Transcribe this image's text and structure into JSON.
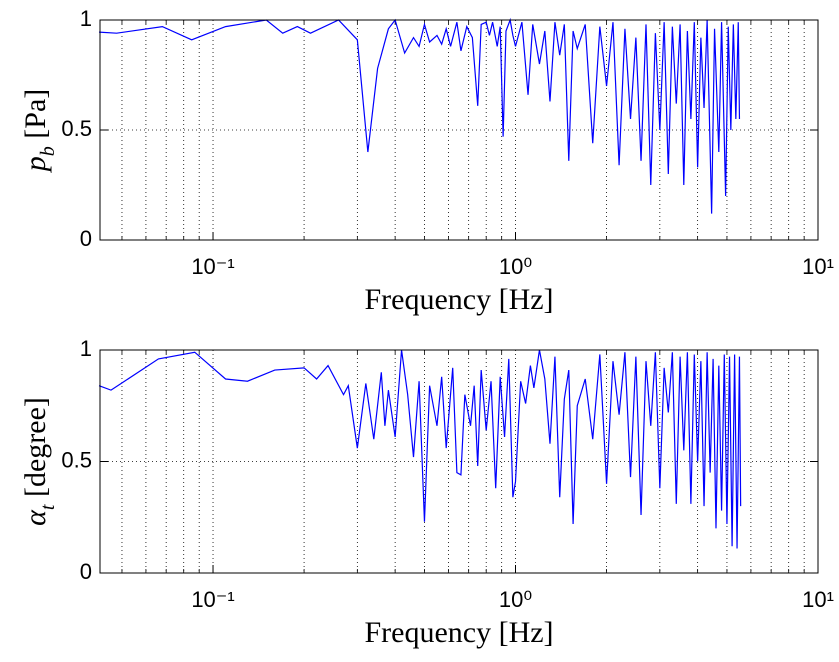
{
  "chart_data": [
    {
      "type": "line",
      "xlabel": "Frequency [Hz]",
      "ylabel": "pb [Pa]",
      "xscale": "log",
      "grid": true,
      "color": "#0000ff",
      "xlim": [
        0.0423,
        10
      ],
      "ylim": [
        0,
        1
      ],
      "xticks": [
        {
          "value": 0.1,
          "label": "10⁻¹"
        },
        {
          "value": 1,
          "label": "10⁰"
        },
        {
          "value": 10,
          "label": "10¹"
        }
      ],
      "yticks": [
        0,
        0.5,
        1
      ],
      "x": [
        0.042,
        0.048,
        0.068,
        0.085,
        0.11,
        0.15,
        0.17,
        0.19,
        0.21,
        0.26,
        0.3,
        0.325,
        0.35,
        0.38,
        0.4,
        0.43,
        0.46,
        0.48,
        0.5,
        0.52,
        0.55,
        0.57,
        0.59,
        0.61,
        0.64,
        0.66,
        0.69,
        0.72,
        0.75,
        0.77,
        0.8,
        0.82,
        0.84,
        0.87,
        0.89,
        0.91,
        0.93,
        0.96,
        0.98,
        1.0,
        1.05,
        1.1,
        1.14,
        1.2,
        1.25,
        1.3,
        1.35,
        1.4,
        1.45,
        1.5,
        1.55,
        1.6,
        1.7,
        1.8,
        1.9,
        2.0,
        2.1,
        2.2,
        2.3,
        2.4,
        2.5,
        2.6,
        2.7,
        2.8,
        2.9,
        3.0,
        3.1,
        3.2,
        3.3,
        3.4,
        3.5,
        3.6,
        3.7,
        3.8,
        3.9,
        4.0,
        4.1,
        4.2,
        4.3,
        4.45,
        4.55,
        4.7,
        4.8,
        4.95,
        5.05,
        5.15,
        5.25,
        5.35,
        5.45,
        5.5
      ],
      "values": [
        0.945,
        0.94,
        0.97,
        0.91,
        0.97,
        1.0,
        0.94,
        0.97,
        0.94,
        1.0,
        0.91,
        0.4,
        0.78,
        0.96,
        1.0,
        0.85,
        0.92,
        0.88,
        0.98,
        0.9,
        0.93,
        0.89,
        0.96,
        0.88,
        0.99,
        0.86,
        0.97,
        0.92,
        0.61,
        0.98,
        0.99,
        0.93,
        0.99,
        0.88,
        0.97,
        0.47,
        0.95,
        1.0,
        0.93,
        0.88,
        0.99,
        0.66,
        0.98,
        0.8,
        0.95,
        0.63,
        0.99,
        0.84,
        0.98,
        0.36,
        0.95,
        0.87,
        0.98,
        0.44,
        0.97,
        0.7,
        0.99,
        0.34,
        0.96,
        0.55,
        0.92,
        0.36,
        0.98,
        0.25,
        0.94,
        0.5,
        0.99,
        0.3,
        0.97,
        0.62,
        0.98,
        0.25,
        0.95,
        0.55,
        0.99,
        0.33,
        0.92,
        0.6,
        1.0,
        0.12,
        0.96,
        0.4,
        0.99,
        0.2,
        0.97,
        0.5,
        0.98,
        0.55,
        0.99,
        0.55
      ]
    },
    {
      "type": "line",
      "xlabel": "Frequency [Hz]",
      "ylabel": "αt [degree]",
      "xscale": "log",
      "grid": true,
      "color": "#0000ff",
      "xlim": [
        0.0423,
        10
      ],
      "ylim": [
        0,
        1
      ],
      "xticks": [
        {
          "value": 0.1,
          "label": "10⁻¹"
        },
        {
          "value": 1,
          "label": "10⁰"
        },
        {
          "value": 10,
          "label": "10¹"
        }
      ],
      "yticks": [
        0,
        0.5,
        1
      ],
      "x": [
        0.042,
        0.046,
        0.066,
        0.087,
        0.11,
        0.13,
        0.16,
        0.2,
        0.22,
        0.24,
        0.27,
        0.28,
        0.3,
        0.32,
        0.34,
        0.36,
        0.37,
        0.38,
        0.4,
        0.42,
        0.44,
        0.46,
        0.48,
        0.5,
        0.52,
        0.55,
        0.57,
        0.59,
        0.62,
        0.64,
        0.66,
        0.68,
        0.71,
        0.73,
        0.75,
        0.77,
        0.8,
        0.83,
        0.86,
        0.89,
        0.92,
        0.95,
        0.98,
        1.0,
        1.04,
        1.08,
        1.12,
        1.15,
        1.2,
        1.25,
        1.3,
        1.35,
        1.4,
        1.45,
        1.5,
        1.55,
        1.6,
        1.7,
        1.8,
        1.9,
        2.0,
        2.1,
        2.2,
        2.3,
        2.4,
        2.5,
        2.6,
        2.7,
        2.8,
        2.9,
        3.0,
        3.1,
        3.2,
        3.3,
        3.4,
        3.5,
        3.6,
        3.7,
        3.8,
        3.9,
        4.0,
        4.1,
        4.2,
        4.3,
        4.4,
        4.5,
        4.6,
        4.7,
        4.8,
        4.9,
        5.0,
        5.1,
        5.2,
        5.3,
        5.4,
        5.5,
        5.55
      ],
      "values": [
        0.84,
        0.82,
        0.96,
        0.99,
        0.87,
        0.86,
        0.91,
        0.92,
        0.87,
        0.93,
        0.8,
        0.84,
        0.56,
        0.85,
        0.6,
        0.9,
        0.66,
        0.82,
        0.61,
        1.0,
        0.8,
        0.52,
        0.86,
        0.23,
        0.84,
        0.66,
        0.88,
        0.56,
        0.92,
        0.45,
        0.44,
        0.8,
        0.66,
        0.84,
        0.48,
        0.91,
        0.64,
        0.86,
        0.38,
        0.88,
        0.61,
        0.96,
        0.34,
        0.41,
        0.86,
        0.76,
        0.93,
        0.83,
        1.0,
        0.87,
        0.58,
        0.97,
        0.34,
        0.78,
        0.91,
        0.22,
        0.75,
        0.87,
        0.6,
        0.98,
        0.4,
        0.95,
        0.71,
        0.99,
        0.43,
        0.97,
        0.26,
        0.95,
        0.66,
        0.99,
        0.38,
        0.92,
        0.72,
        0.99,
        0.31,
        0.97,
        0.55,
        0.99,
        0.31,
        0.98,
        0.5,
        0.95,
        0.3,
        0.99,
        0.45,
        0.96,
        0.2,
        0.93,
        0.28,
        0.98,
        0.22,
        0.97,
        0.12,
        0.98,
        0.11,
        0.97,
        0.3
      ]
    }
  ]
}
